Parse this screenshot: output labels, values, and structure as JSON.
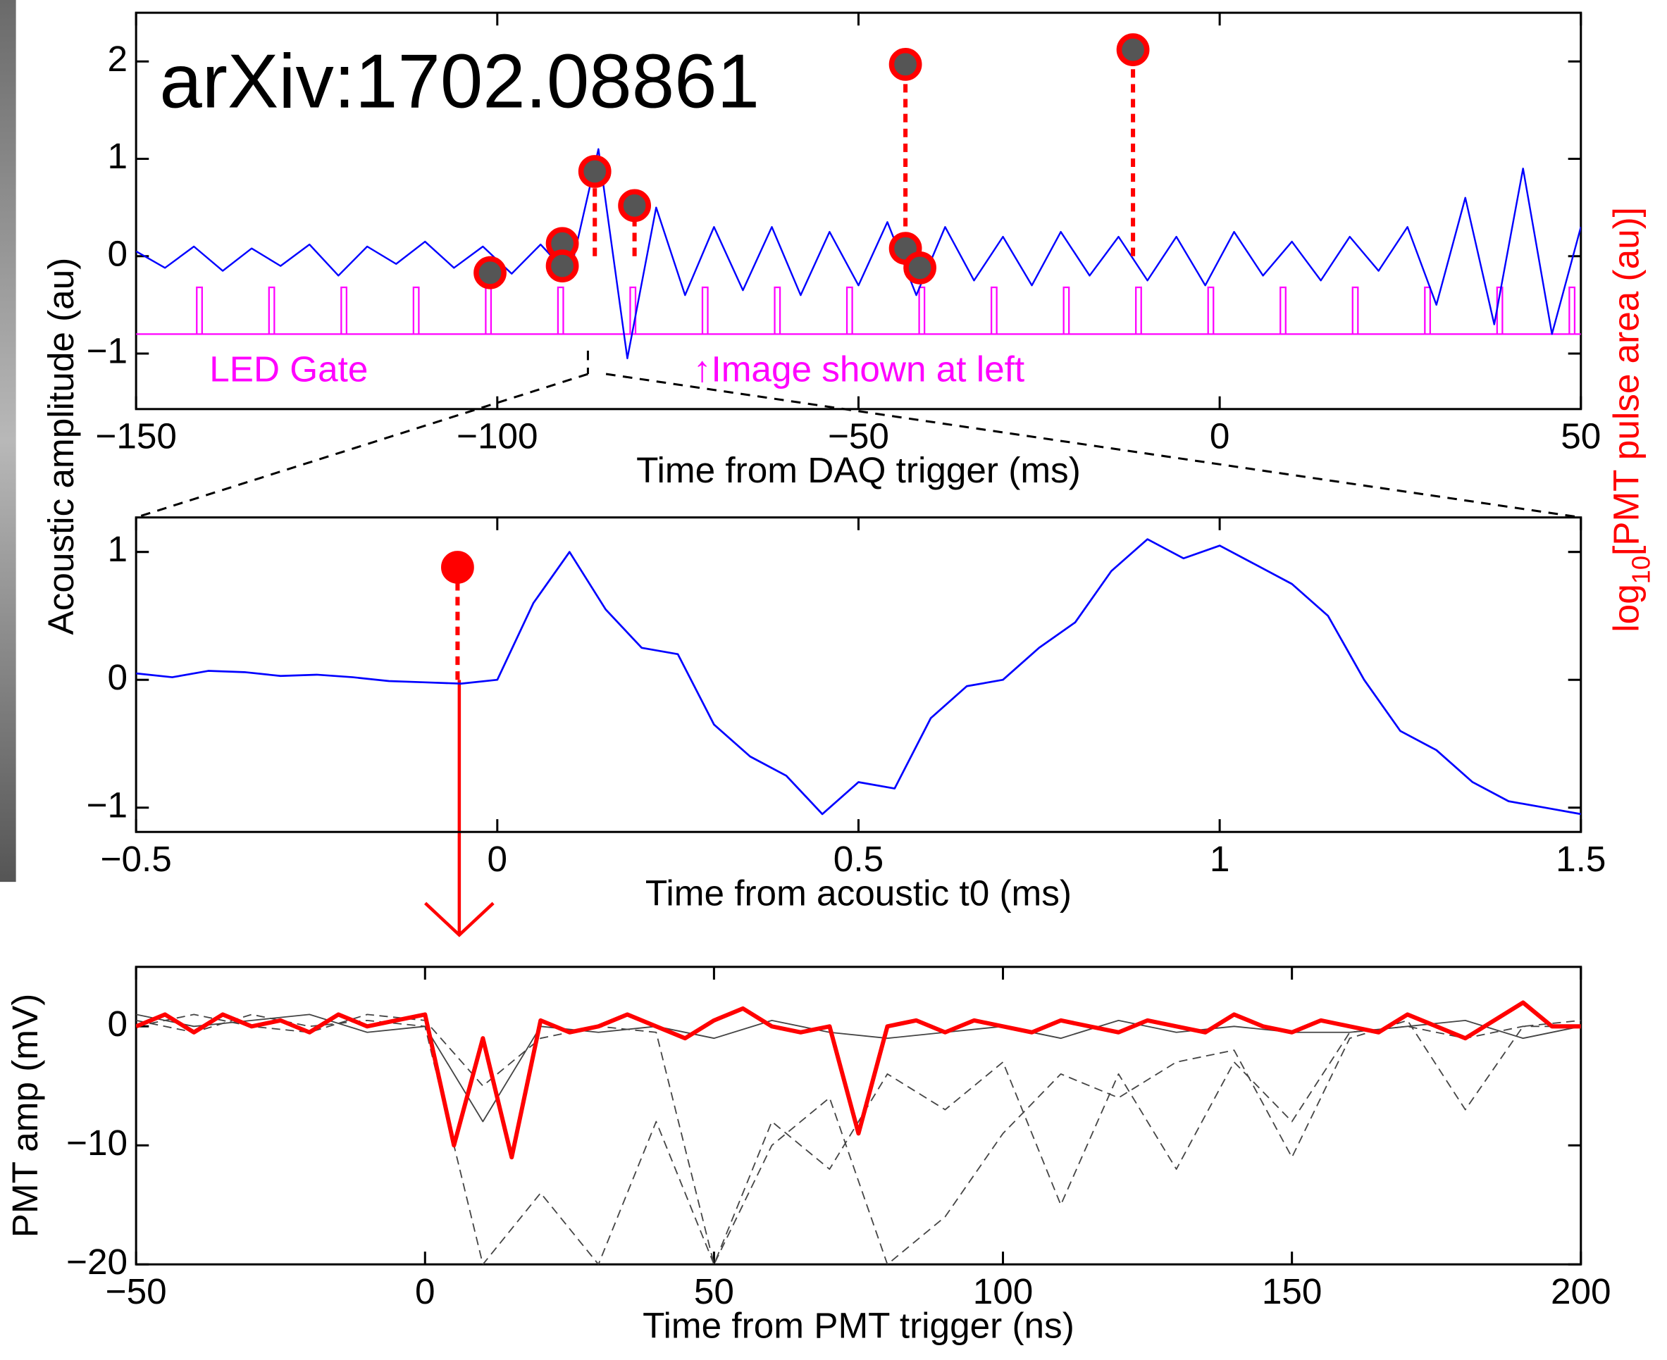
{
  "chart_data": [
    {
      "type": "line",
      "xlabel": "Time from DAQ trigger (ms)",
      "ylabel": "Acoustic amplitude (au)",
      "y2label": {
        "base": "log",
        "subscript": "10",
        "rest": "[PMT pulse area (au)]"
      },
      "annotations": [
        "arXiv:1702.08861",
        "↑Image shown at left"
      ],
      "xlim": [
        -150,
        50
      ],
      "ylim": [
        -1.57,
        2.5
      ],
      "xticks": [
        {
          "value": -150,
          "label": "−150"
        },
        {
          "value": -100,
          "label": "−100"
        },
        {
          "value": -50,
          "label": "−50"
        },
        0,
        50
      ],
      "yticks": [
        {
          "value": -1,
          "label": "−1"
        },
        0,
        1,
        2
      ],
      "x": [
        -150,
        -146,
        -142,
        -138,
        -134,
        -130,
        -126,
        -122,
        -118,
        -114,
        -110,
        -106,
        -102,
        -98,
        -94,
        -90,
        -86,
        -82,
        -78,
        -74,
        -70,
        -66,
        -62,
        -58,
        -54,
        -50,
        -46,
        -42,
        -38,
        -34,
        -30,
        -26,
        -22,
        -18,
        -14,
        -10,
        -6,
        -2,
        2,
        6,
        10,
        14,
        18,
        22,
        26,
        30,
        34,
        38,
        42,
        46,
        50
      ],
      "series": [
        {
          "color": "#0000ff",
          "values": [
            0.05,
            -0.12,
            0.1,
            -0.15,
            0.08,
            -0.1,
            0.12,
            -0.2,
            0.1,
            -0.08,
            0.15,
            -0.12,
            0.1,
            -0.18,
            0.12,
            -0.2,
            1.1,
            -1.05,
            0.5,
            -0.4,
            0.3,
            -0.35,
            0.3,
            -0.4,
            0.25,
            -0.3,
            0.35,
            -0.4,
            0.3,
            -0.25,
            0.2,
            -0.3,
            0.25,
            -0.2,
            0.2,
            -0.25,
            0.2,
            -0.3,
            0.25,
            -0.2,
            0.15,
            -0.25,
            0.2,
            -0.15,
            0.3,
            -0.5,
            0.6,
            -0.7,
            0.9,
            -0.8,
            0.3
          ]
        }
      ],
      "markers": {
        "x": [
          -101,
          -91,
          -91,
          -86.5,
          -81,
          -43.5,
          -43.5,
          -41.5,
          -12
        ],
        "values": [
          -0.17,
          0.13,
          -0.1,
          0.87,
          0.52,
          1.97,
          0.08,
          -0.12,
          2.12
        ],
        "color": "#ff0000",
        "face": "#555555"
      },
      "led_gate": {
        "label": "LED Gate",
        "color": "#ff00ff",
        "low": -0.8,
        "high": -0.32,
        "x": [
          -141.6,
          -131.6,
          -121.6,
          -111.6,
          -101.6,
          -91.6,
          -81.6,
          -71.6,
          -61.6,
          -51.6,
          -41.6,
          -31.6,
          -21.6,
          -11.6,
          -1.6,
          8.4,
          18.4,
          28.4,
          38.4,
          48.4
        ]
      }
    },
    {
      "type": "line",
      "xlabel": "Time from acoustic t0 (ms)",
      "xlim": [
        -0.5,
        1.5
      ],
      "ylim": [
        -1.19,
        1.27
      ],
      "xticks": [
        {
          "value": -0.5,
          "label": "−0.5"
        },
        0,
        0.5,
        1,
        1.5
      ],
      "yticks": [
        {
          "value": -1,
          "label": "−1"
        },
        0,
        1
      ],
      "x": [
        -0.5,
        -0.45,
        -0.4,
        -0.35,
        -0.3,
        -0.25,
        -0.2,
        -0.15,
        -0.1,
        -0.05,
        0,
        0.05,
        0.1,
        0.15,
        0.2,
        0.25,
        0.3,
        0.35,
        0.4,
        0.45,
        0.5,
        0.55,
        0.6,
        0.65,
        0.7,
        0.75,
        0.8,
        0.85,
        0.9,
        0.95,
        1,
        1.05,
        1.1,
        1.15,
        1.2,
        1.25,
        1.3,
        1.35,
        1.4,
        1.45,
        1.5
      ],
      "series": [
        {
          "color": "#0000ff",
          "values": [
            0.05,
            0.02,
            0.07,
            0.06,
            0.03,
            0.04,
            0.02,
            -0.01,
            -0.02,
            -0.03,
            0,
            0.6,
            1,
            0.55,
            0.25,
            0.2,
            -0.35,
            -0.6,
            -0.75,
            -1.05,
            -0.8,
            -0.85,
            -0.3,
            -0.05,
            0,
            0.25,
            0.45,
            0.85,
            1.1,
            0.95,
            1.05,
            0.9,
            0.75,
            0.5,
            0,
            -0.4,
            -0.55,
            -0.8,
            -0.95,
            -1,
            -1.05
          ]
        }
      ],
      "markers": {
        "x": [
          -0.055
        ],
        "values": [
          0.88
        ],
        "color": "#ff0000",
        "face": "#ff0000"
      }
    },
    {
      "type": "line",
      "xlabel": "Time from PMT trigger (ns)",
      "ylabel": "PMT amp (mV)",
      "xlim": [
        -50,
        200
      ],
      "ylim": [
        -20,
        5
      ],
      "xticks": [
        {
          "value": -50,
          "label": "−50"
        },
        0,
        50,
        100,
        150,
        200
      ],
      "yticks": [
        {
          "value": -20,
          "label": "−20"
        },
        {
          "value": -10,
          "label": "−10"
        },
        0
      ],
      "series": [
        {
          "color": "#444444",
          "line_style": "dashed",
          "x": [
            -50,
            -40,
            -30,
            -20,
            -10,
            0,
            10,
            20,
            30,
            40,
            50,
            60,
            70,
            80,
            90,
            100,
            110,
            120,
            130,
            140,
            150,
            160,
            170,
            180,
            190,
            200
          ],
          "values": [
            0.5,
            -0.5,
            1,
            0,
            0.5,
            0,
            -20,
            -14,
            -20,
            -8,
            -20,
            -8,
            -12,
            -4,
            -7,
            -3,
            -15,
            -4,
            -12,
            -3,
            -8,
            -0.5,
            0,
            -1,
            0,
            0
          ]
        },
        {
          "color": "#444444",
          "line_style": "dashed",
          "x": [
            -50,
            -40,
            -30,
            -20,
            -10,
            0,
            10,
            20,
            30,
            40,
            50,
            60,
            70,
            80,
            90,
            100,
            110,
            120,
            130,
            140,
            150,
            160,
            170,
            180,
            190,
            200
          ],
          "values": [
            0,
            1,
            0,
            -0.5,
            1,
            0.5,
            -5,
            -1,
            0,
            -0.5,
            -20,
            -10,
            -6,
            -20,
            -16,
            -9,
            -4,
            -6,
            -3,
            -2,
            -11,
            -1,
            0.5,
            -7,
            0,
            0.5
          ]
        },
        {
          "color": "#444444",
          "line_style": "solid",
          "x": [
            -50,
            -40,
            -30,
            -20,
            -10,
            0,
            10,
            20,
            30,
            40,
            50,
            60,
            70,
            80,
            90,
            100,
            110,
            120,
            130,
            140,
            150,
            160,
            170,
            180,
            190,
            200
          ],
          "values": [
            1,
            0,
            0.5,
            1,
            -0.5,
            0,
            -8,
            0,
            -0.5,
            0,
            -1,
            0.5,
            -0.5,
            -1,
            -0.5,
            0,
            -1,
            0.5,
            -0.5,
            0,
            -0.5,
            -0.5,
            0,
            0.5,
            -1,
            0
          ]
        },
        {
          "color": "#ff0000",
          "line_style": "solid",
          "x": [
            -50,
            -45,
            -40,
            -35,
            -30,
            -25,
            -20,
            -15,
            -10,
            -5,
            0,
            5,
            10,
            15,
            20,
            25,
            30,
            35,
            40,
            45,
            50,
            55,
            60,
            65,
            70,
            75,
            80,
            85,
            90,
            95,
            100,
            105,
            110,
            115,
            120,
            125,
            130,
            135,
            140,
            145,
            150,
            155,
            160,
            165,
            170,
            175,
            180,
            185,
            190,
            195,
            200
          ],
          "values": [
            0,
            1,
            -0.5,
            1,
            0,
            0.5,
            -0.5,
            1,
            0,
            0.5,
            1,
            -10,
            -1,
            -11,
            0.5,
            -0.5,
            0,
            1,
            0,
            -1,
            0.5,
            1.5,
            0,
            -0.5,
            0,
            -9,
            0,
            0.5,
            -0.5,
            0.5,
            0,
            -0.5,
            0.5,
            0,
            -0.5,
            0.5,
            0,
            -0.5,
            1,
            0,
            -0.5,
            0.5,
            0,
            -0.5,
            1,
            0,
            -1,
            0.5,
            2,
            0,
            0
          ]
        }
      ]
    }
  ]
}
